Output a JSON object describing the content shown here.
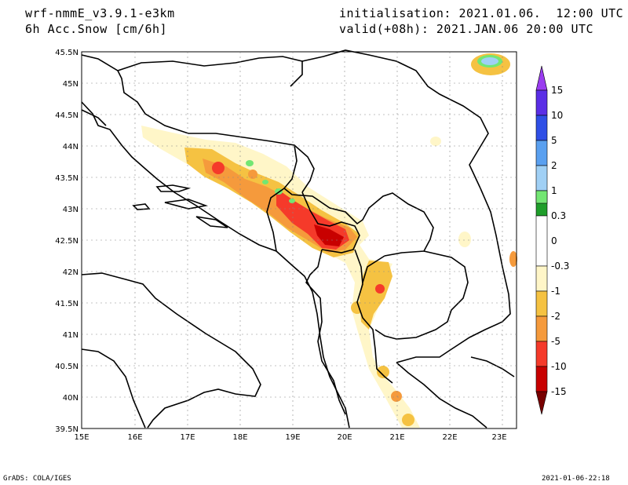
{
  "header": {
    "model": "wrf-nmmE_v3.9.1-e3km",
    "field": "6h Acc.Snow [cm/6h]",
    "init": "initialisation: 2021.01.06.  12:00 UTC",
    "valid": "valid(+08h): 2021.JAN.06 20:00 UTC"
  },
  "footer": {
    "left": "GrADS: COLA/IGES",
    "right": "2021-01-06-22:18"
  },
  "map": {
    "lon_labels": [
      "15E",
      "16E",
      "17E",
      "18E",
      "19E",
      "20E",
      "21E",
      "22E",
      "23E"
    ],
    "lat_labels": [
      "45.5N",
      "45N",
      "44.5N",
      "44N",
      "43.5N",
      "43N",
      "42.5N",
      "42N",
      "41.5N",
      "41N",
      "40.5N",
      "40N",
      "39.5N"
    ],
    "lon_range": [
      15,
      23.3
    ],
    "lat_range": [
      39.5,
      45.5
    ]
  },
  "colorbar": {
    "labels": [
      "15",
      "10",
      "5",
      "2",
      "1",
      "0.3",
      "0",
      "-0.3",
      "-1",
      "-2",
      "-5",
      "-10",
      "-15"
    ],
    "colors_top_to_bottom": [
      "#5a2ee6",
      "#2f4fe6",
      "#5aa0f0",
      "#a0d0f5",
      "#1f9e2a",
      "#73e673",
      "#ffffff",
      "#fff6c8",
      "#f5c242",
      "#f59a3c",
      "#f53a2a",
      "#c80000",
      "#780000"
    ]
  },
  "snow_colors": {
    "light": "#fff6c8",
    "moderate": "#f5c242",
    "orange": "#f59a3c",
    "red": "#f53a2a",
    "darkred": "#c80000",
    "green_light": "#73e673",
    "green": "#1f9e2a",
    "blue_light": "#a0d0f5"
  }
}
